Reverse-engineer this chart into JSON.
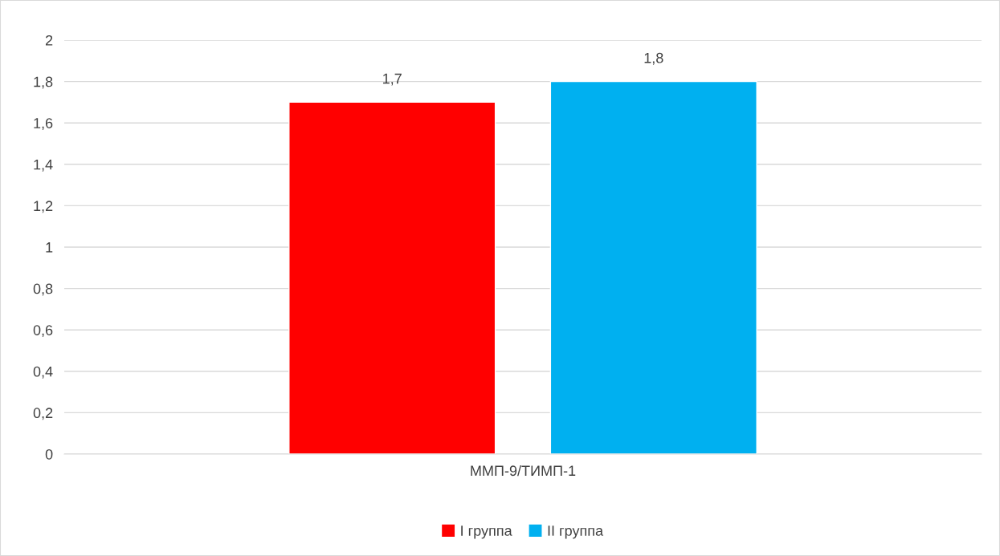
{
  "chart_data": {
    "type": "bar",
    "categories": [
      "ММП-9/ТИМП-1"
    ],
    "series": [
      {
        "name": "I группа",
        "color": "#ff0000",
        "values": [
          1.7
        ],
        "value_labels": [
          "1,7"
        ]
      },
      {
        "name": "II группа",
        "color": "#00b0f0",
        "values": [
          1.8
        ],
        "value_labels": [
          "1,8"
        ]
      }
    ],
    "ylim": [
      0,
      2
    ],
    "yticks": [
      0,
      {
        "value": 0.2,
        "label": "0,2"
      },
      {
        "value": 0.4,
        "label": "0,4"
      },
      {
        "value": 0.6,
        "label": "0,6"
      },
      {
        "value": 0.8,
        "label": "0,8"
      },
      1,
      {
        "value": 1.2,
        "label": "1,2"
      },
      {
        "value": 1.4,
        "label": "1,4"
      },
      {
        "value": 1.6,
        "label": "1,6"
      },
      {
        "value": 1.8,
        "label": "1,8"
      },
      2
    ],
    "grid": "y",
    "legend": "bottom"
  }
}
